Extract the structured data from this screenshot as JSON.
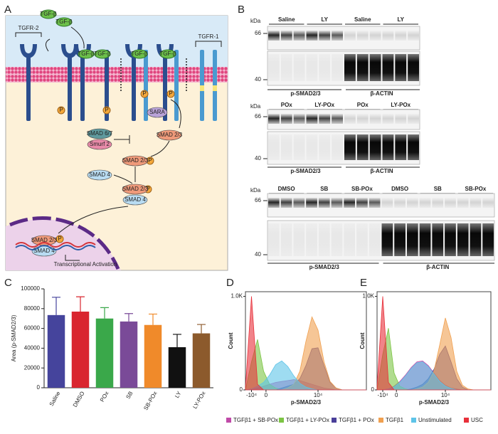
{
  "panel_labels": [
    "A",
    "B",
    "C",
    "D",
    "E"
  ],
  "diagram": {
    "ligands": [
      "TGF-β",
      "TGF-β",
      "TGF-β",
      "TGF-β",
      "TGF-β",
      "TGF-β"
    ],
    "receptors": [
      "TGFR-2",
      "TGFR-1"
    ],
    "phospho": [
      "P",
      "P",
      "P",
      "P",
      "P",
      "P",
      "P"
    ],
    "sara": "SARA",
    "inhibitors": [
      "SMAD 6/7",
      "Smurf 2"
    ],
    "smad23": [
      "SMAD 2/3",
      "SMAD 2/3",
      "SMAD 2/3",
      "SMAD 2/3"
    ],
    "smad4": [
      "SMAD 4",
      "SMAD 4",
      "SMAD 4"
    ],
    "transcription": "Transcriptional Activation"
  },
  "blots": [
    {
      "kda": "kDa",
      "markers": [
        "66",
        "40"
      ],
      "headers": [
        "Saline",
        "LY",
        "Saline",
        "LY"
      ],
      "proteins": [
        "p-SMAD2/3",
        "β-ACTIN"
      ]
    },
    {
      "kda": "kDa",
      "markers": [
        "66",
        "40"
      ],
      "headers": [
        "POx",
        "LY-POx",
        "POx",
        "LY-POx"
      ],
      "proteins": [
        "p-SMAD2/3",
        "β-ACTIN"
      ]
    },
    {
      "kda": "kDa",
      "markers": [
        "66",
        "40"
      ],
      "headers": [
        "DMSO",
        "SB",
        "SB-POx",
        "DMSO",
        "SB",
        "SB-POx"
      ],
      "proteins": [
        "p-SMAD2/3",
        "β-ACTIN"
      ]
    }
  ],
  "chart_data": [
    {
      "type": "bar",
      "y_label": "Area (p-SMAD2/3)",
      "categories": [
        "Saline",
        "DMSO",
        "POx",
        "SB",
        "SB-POx",
        "LY",
        "LY-POx"
      ],
      "values": [
        73500,
        77000,
        70000,
        67000,
        63500,
        41000,
        55000
      ],
      "errors": [
        18000,
        15000,
        11000,
        8000,
        11000,
        13000,
        9000
      ],
      "colors": [
        "#45449c",
        "#d9262f",
        "#3aa84a",
        "#7a4a98",
        "#f08a2a",
        "#111111",
        "#8c5a2c"
      ],
      "ylim": [
        0,
        100000
      ],
      "yticks": [
        0,
        20000,
        40000,
        60000,
        80000,
        100000
      ]
    },
    {
      "type": "area",
      "y_label": "Count",
      "x_label": "p-SMAD2/3",
      "x": [
        0,
        5,
        10,
        15,
        20,
        25,
        30,
        35,
        40,
        45,
        50,
        55,
        60,
        65,
        70,
        75,
        80,
        85,
        90,
        95,
        100
      ],
      "xlim": [
        0,
        100
      ],
      "xticks": [
        {
          "value": 5,
          "label": "-10⁴"
        },
        {
          "value": 17,
          "label": "0"
        },
        {
          "value": 60,
          "label": "10⁴"
        }
      ],
      "ylim": [
        0,
        1050
      ],
      "yticks": [
        0,
        {
          "value": 1000,
          "label": "1.0K"
        }
      ],
      "series": [
        {
          "name": "TGFβ1 + SB-POx",
          "color": "#c04aa8",
          "values": [
            0,
            0,
            20,
            40,
            60,
            80,
            90,
            100,
            110,
            100,
            80,
            60,
            40,
            20,
            10,
            0,
            0,
            0,
            0,
            0,
            0
          ]
        },
        {
          "name": "TGFβ1 + LY-POx",
          "color": "#7cc444",
          "values": [
            0,
            300,
            540,
            200,
            60,
            20,
            0,
            0,
            0,
            0,
            0,
            0,
            0,
            0,
            0,
            0,
            0,
            0,
            0,
            0,
            0
          ]
        },
        {
          "name": "TGFβ1 + POx",
          "color": "#4a3f9a",
          "values": [
            0,
            0,
            0,
            0,
            0,
            0,
            20,
            40,
            60,
            120,
            260,
            440,
            450,
            260,
            80,
            20,
            0,
            0,
            0,
            0,
            0
          ]
        },
        {
          "name": "TGFβ1",
          "color": "#f0a050",
          "values": [
            0,
            0,
            0,
            0,
            0,
            0,
            0,
            20,
            60,
            200,
            520,
            780,
            640,
            300,
            90,
            20,
            0,
            0,
            0,
            0,
            0
          ]
        },
        {
          "name": "Unstimulated",
          "color": "#5ec4e8",
          "values": [
            0,
            10,
            40,
            80,
            160,
            270,
            310,
            250,
            150,
            70,
            30,
            10,
            0,
            0,
            0,
            0,
            0,
            0,
            0,
            0,
            0
          ]
        },
        {
          "name": "USC",
          "color": "#e8303a",
          "values": [
            20,
            1000,
            60,
            0,
            0,
            0,
            0,
            0,
            0,
            0,
            0,
            0,
            0,
            0,
            0,
            0,
            0,
            0,
            0,
            0,
            0
          ]
        }
      ]
    },
    {
      "type": "area",
      "y_label": "Count",
      "x_label": "p-SMAD2/3",
      "x": [
        0,
        5,
        10,
        15,
        20,
        25,
        30,
        35,
        40,
        45,
        50,
        55,
        60,
        65,
        70,
        75,
        80,
        85,
        90,
        95,
        100
      ],
      "xlim": [
        0,
        100
      ],
      "xticks": [
        {
          "value": 5,
          "label": "-10⁴"
        },
        {
          "value": 17,
          "label": "0"
        },
        {
          "value": 60,
          "label": "10⁴"
        }
      ],
      "ylim": [
        0,
        1050
      ],
      "yticks": [
        0,
        {
          "value": 1000,
          "label": "1.0K"
        }
      ],
      "series": [
        {
          "color": "#c04aa8",
          "values": [
            0,
            0,
            10,
            40,
            90,
            160,
            240,
            300,
            310,
            260,
            180,
            100,
            50,
            20,
            10,
            0,
            0,
            0,
            0,
            0,
            0
          ]
        },
        {
          "color": "#7cc444",
          "values": [
            0,
            380,
            660,
            180,
            40,
            10,
            0,
            0,
            0,
            0,
            0,
            0,
            0,
            0,
            0,
            0,
            0,
            0,
            0,
            0,
            0
          ]
        },
        {
          "color": "#4a3f9a",
          "values": [
            0,
            0,
            0,
            0,
            0,
            0,
            10,
            30,
            60,
            120,
            220,
            380,
            470,
            300,
            120,
            30,
            0,
            0,
            0,
            0,
            0
          ]
        },
        {
          "color": "#f0a050",
          "values": [
            0,
            0,
            0,
            0,
            0,
            0,
            0,
            10,
            30,
            80,
            200,
            480,
            770,
            560,
            200,
            50,
            10,
            0,
            0,
            0,
            0
          ]
        },
        {
          "color": "#5ec4e8",
          "values": [
            0,
            0,
            10,
            30,
            80,
            150,
            230,
            290,
            300,
            250,
            170,
            90,
            40,
            15,
            0,
            0,
            0,
            0,
            0,
            0,
            0
          ]
        },
        {
          "color": "#e8303a",
          "values": [
            30,
            1000,
            80,
            0,
            0,
            0,
            0,
            0,
            0,
            0,
            0,
            0,
            0,
            0,
            0,
            0,
            0,
            0,
            0,
            0,
            0
          ]
        }
      ]
    }
  ]
}
